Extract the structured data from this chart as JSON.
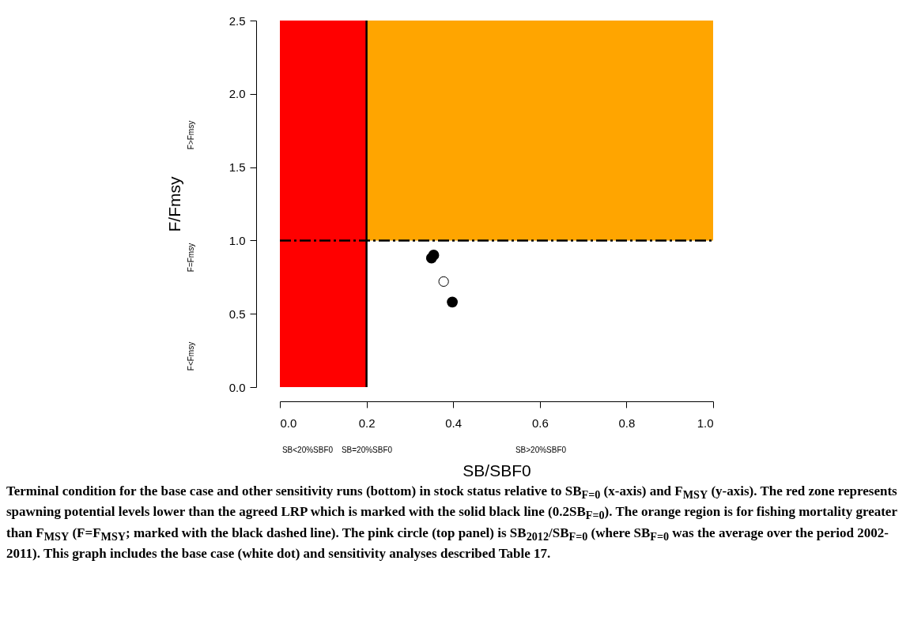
{
  "chart_data": {
    "type": "scatter",
    "xlabel": "SB/SBF0",
    "ylabel": "F/Fmsy",
    "xlim": [
      0,
      1
    ],
    "ylim": [
      0,
      2.5
    ],
    "xticks": [
      {
        "value": 0,
        "label": "0.0"
      },
      0.2,
      0.4,
      0.6,
      0.8,
      {
        "value": 1,
        "label": "1.0"
      }
    ],
    "yticks": [
      {
        "value": 0,
        "label": "0.0"
      },
      0.5,
      {
        "value": 1,
        "label": "1.0"
      },
      1.5,
      {
        "value": 2,
        "label": "2.0"
      },
      2.5
    ],
    "series": [
      {
        "color": "#000000",
        "x": [
          0.35,
          0.355,
          0.398
        ],
        "values": [
          0.88,
          0.9,
          0.58
        ]
      },
      {
        "color": "#ffffff",
        "x": [
          0.378
        ],
        "values": [
          0.72
        ]
      }
    ],
    "bands": [
      {
        "axis": "y",
        "from": 1,
        "to": 2.5,
        "color": "#ffa500"
      },
      {
        "axis": "x",
        "from": 0,
        "to": 0.2,
        "color": "#ff0000"
      }
    ],
    "ref_lines": [
      {
        "axis": "x",
        "value": 0.2,
        "color": "#000000",
        "line_style": "solid"
      },
      {
        "axis": "y",
        "value": 1,
        "color": "#000000",
        "line_style": "dashed"
      }
    ],
    "annotations": [
      "F>Fmsy",
      "F=Fmsy",
      "F<Fmsy",
      "SB<20%SBF0",
      "SB=20%SBF0",
      "SB>20%SBF0",
      "Terminal condition for the base case and other sensitivity runs (bottom) in stock status relative to SB$_{F=0}$ (x-axis) and F$_{MSY}$ (y-axis). The red zone represents spawning potential levels lower than the agreed LRP which is marked with the solid black line (0.2SB$_{F=0}$). The orange region is for fishing mortality greater than F$_{MSY}$ (F=F$_{MSY}$; marked with the black dashed line). The pink circle (top panel) is SB$_{2012}$/SB$_{F=0}$ (where SB$_{F=0}$ was the average over the period 2002-2011). This graph includes the base case (white dot) and sensitivity analyses described Table 17."
    ],
    "marker": "circle",
    "grid": false
  }
}
